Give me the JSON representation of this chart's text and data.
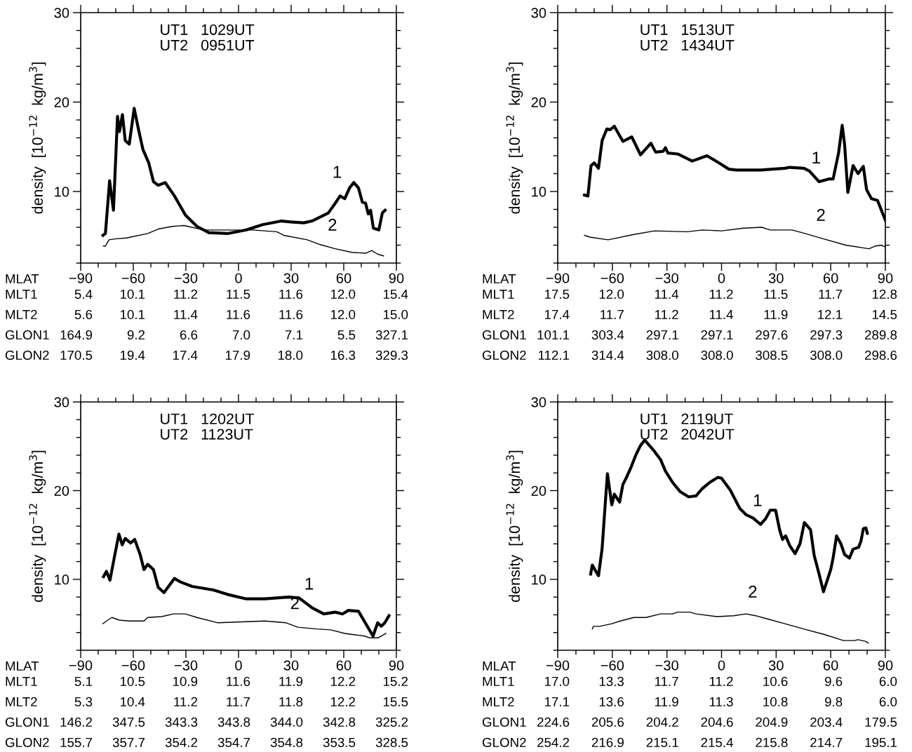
{
  "chart_data": [
    {
      "type": "line",
      "ylabel": "density  [10$^{−12}$  kg/m$^{3}$]",
      "xlabel": "MLAT",
      "annotations": [
        "UT1   1029UT",
        "UT2   0951UT",
        "MLT1",
        "5.4",
        "10.1",
        "11.2",
        "11.5",
        "11.6",
        "12.0",
        "15.4",
        "MLT2",
        "5.6",
        "10.1",
        "11.4",
        "11.6",
        "11.6",
        "12.0",
        "15.0",
        "GLON1",
        "164.9",
        "9.2",
        "6.6",
        "7.0",
        "7.1",
        "5.5",
        "327.1",
        "GLON2",
        "170.5",
        "19.4",
        "17.4",
        "17.9",
        "18.0",
        "16.3",
        "329.3",
        {
          "text": "1",
          "x": 57.9,
          "y": 9.5
        },
        {
          "text": "2",
          "x": 55.2,
          "y": 3.6
        }
      ],
      "xlim": [
        -90,
        90
      ],
      "ylim": [
        2,
        30
      ],
      "xticks": [
        -90,
        {
          "value": -80,
          "label": null
        },
        {
          "value": -70,
          "label": null
        },
        -60,
        {
          "value": -50,
          "label": null
        },
        {
          "value": -40,
          "label": null
        },
        -30,
        {
          "value": -20,
          "label": null
        },
        {
          "value": -10,
          "label": null
        },
        0,
        {
          "value": 10,
          "label": null
        },
        {
          "value": 20,
          "label": null
        },
        30,
        {
          "value": 40,
          "label": null
        },
        {
          "value": 50,
          "label": null
        },
        60,
        {
          "value": 70,
          "label": null
        },
        {
          "value": 80,
          "label": null
        },
        90
      ],
      "yticks": [
        {
          "value": 2,
          "label": null
        },
        {
          "value": 4,
          "label": null
        },
        {
          "value": 6,
          "label": null
        },
        {
          "value": 8,
          "label": null
        },
        10,
        {
          "value": 12,
          "label": null
        },
        {
          "value": 14,
          "label": null
        },
        {
          "value": 16,
          "label": null
        },
        {
          "value": 18,
          "label": null
        },
        20,
        {
          "value": 22,
          "label": null
        },
        {
          "value": 24,
          "label": null
        },
        {
          "value": 26,
          "label": null
        },
        {
          "value": 28,
          "label": null
        },
        30
      ],
      "series": [
        {
          "color": "#000000",
          "x": [
            -77.3,
            -75.9,
            -73.5,
            -71.3,
            -69.0,
            -67.9,
            -66.2,
            -64.6,
            -62.3,
            -59.5,
            -57.2,
            -54.5,
            -51.2,
            -48.5,
            -45.8,
            -41.8,
            -36.5,
            -30.4,
            -23.7,
            -17.0,
            -6.3,
            4.4,
            13.7,
            24.5,
            29.8,
            37.2,
            41.9,
            51.2,
            55.2,
            57.9,
            60.6,
            63.3,
            65.7,
            68.4,
            70.6,
            72.4,
            74.0,
            75.3,
            76.9,
            80.0,
            82.0,
            83.6
          ],
          "values": [
            5.1,
            5.3,
            11.2,
            7.9,
            18.4,
            16.7,
            18.6,
            15.7,
            15.3,
            19.3,
            17.1,
            14.7,
            13.2,
            11.1,
            10.7,
            11.0,
            9.5,
            7.4,
            6.1,
            5.4,
            5.3,
            5.7,
            6.3,
            6.7,
            6.6,
            6.5,
            6.7,
            7.6,
            8.7,
            9.5,
            9.2,
            10.4,
            11.0,
            10.4,
            8.8,
            8.7,
            7.5,
            7.9,
            5.9,
            5.7,
            7.6,
            7.9
          ]
        },
        {
          "color": "#000000",
          "x": [
            -77.0,
            -75.9,
            -73.9,
            -70.6,
            -63.9,
            -51.8,
            -45.8,
            -37.8,
            -31.1,
            -19.7,
            -9.0,
            8.4,
            21.8,
            25.8,
            39.2,
            45.9,
            55.2,
            64.6,
            72.7,
            76.0,
            79.3,
            82.7
          ],
          "values": [
            3.9,
            3.9,
            4.6,
            4.7,
            4.8,
            5.3,
            5.8,
            6.1,
            6.2,
            5.7,
            5.7,
            5.7,
            5.5,
            5.1,
            4.6,
            4.1,
            3.6,
            3.2,
            3.1,
            3.4,
            3.0,
            2.8
          ]
        }
      ]
    },
    {
      "type": "line",
      "ylabel": "density  [10$^{−12}$  kg/m$^{3}$]",
      "xlabel": "MLAT",
      "annotations": [
        "UT1   1513UT",
        "UT2   1434UT",
        "MLT1",
        "17.5",
        "12.0",
        "11.4",
        "11.2",
        "11.5",
        "11.7",
        "12.8",
        "MLT2",
        "17.4",
        "11.7",
        "11.2",
        "11.4",
        "11.9",
        "12.1",
        "14.5",
        "GLON1",
        "101.1",
        "303.4",
        "297.1",
        "297.1",
        "297.6",
        "297.3",
        "289.8",
        "GLON2",
        "112.1",
        "314.4",
        "308.0",
        "308.0",
        "308.5",
        "308.0",
        "298.6",
        {
          "text": "1",
          "x": 53.6,
          "y": 11.1
        },
        {
          "text": "2",
          "x": 56.2,
          "y": 4.7
        }
      ],
      "xlim": [
        -90,
        90
      ],
      "ylim": [
        2,
        30
      ],
      "xticks": [
        -90,
        {
          "value": -80,
          "label": null
        },
        {
          "value": -70,
          "label": null
        },
        -60,
        {
          "value": -50,
          "label": null
        },
        {
          "value": -40,
          "label": null
        },
        -30,
        {
          "value": -20,
          "label": null
        },
        {
          "value": -10,
          "label": null
        },
        0,
        {
          "value": 10,
          "label": null
        },
        {
          "value": 20,
          "label": null
        },
        30,
        {
          "value": 40,
          "label": null
        },
        {
          "value": 50,
          "label": null
        },
        60,
        {
          "value": 70,
          "label": null
        },
        {
          "value": 80,
          "label": null
        },
        90
      ],
      "yticks": [
        {
          "value": 2,
          "label": null
        },
        {
          "value": 4,
          "label": null
        },
        {
          "value": 6,
          "label": null
        },
        {
          "value": 8,
          "label": null
        },
        10,
        {
          "value": 12,
          "label": null
        },
        {
          "value": 14,
          "label": null
        },
        {
          "value": 16,
          "label": null
        },
        {
          "value": 18,
          "label": null
        },
        20,
        {
          "value": 22,
          "label": null
        },
        {
          "value": 24,
          "label": null
        },
        {
          "value": 26,
          "label": null
        },
        {
          "value": 28,
          "label": null
        },
        30
      ],
      "series": [
        {
          "color": "#000000",
          "x": [
            -75.3,
            -73.4,
            -71.7,
            -69.9,
            -67.6,
            -65.6,
            -63.0,
            -61.3,
            -58.9,
            -54.2,
            -49.3,
            -44.5,
            -38.8,
            -36.2,
            -32.1,
            -30.8,
            -29.5,
            -24.1,
            -16.1,
            -8.0,
            -1.4,
            4.0,
            8.0,
            21.4,
            34.8,
            37.5,
            45.3,
            48.2,
            53.6,
            58.9,
            61.3,
            64.3,
            66.3,
            67.6,
            69.4,
            72.3,
            75.0,
            77.9,
            79.7,
            82.4,
            85.7,
            90.0
          ],
          "values": [
            9.6,
            9.5,
            12.9,
            13.2,
            12.6,
            15.7,
            17.0,
            16.9,
            17.3,
            15.6,
            16.1,
            14.1,
            15.4,
            14.4,
            14.5,
            14.9,
            14.3,
            14.2,
            13.4,
            14.0,
            13.2,
            12.5,
            12.4,
            12.4,
            12.6,
            12.7,
            12.6,
            12.3,
            11.1,
            11.4,
            11.4,
            14.3,
            17.4,
            15.3,
            9.9,
            12.9,
            12.0,
            12.8,
            10.2,
            9.2,
            9.0,
            6.8
          ]
        },
        {
          "color": "#000000",
          "x": [
            -75.3,
            -72.3,
            -62.3,
            -48.2,
            -36.8,
            -18.8,
            -10.7,
            0.0,
            12.0,
            22.1,
            26.8,
            38.8,
            44.2,
            56.2,
            68.3,
            81.0,
            84.4,
            87.7,
            90.0
          ],
          "values": [
            5.1,
            4.9,
            4.6,
            5.2,
            5.6,
            5.5,
            5.7,
            5.6,
            5.9,
            6.0,
            5.7,
            5.7,
            5.4,
            4.7,
            4.0,
            3.6,
            3.9,
            4.0,
            3.8
          ]
        }
      ]
    },
    {
      "type": "line",
      "ylabel": "density  [10$^{−12}$  kg/m$^{3}$]",
      "xlabel": "MLAT",
      "annotations": [
        "UT1   1202UT",
        "UT2   1123UT",
        "MLT1",
        "5.1",
        "10.5",
        "10.9",
        "11.6",
        "11.9",
        "12.2",
        "15.2",
        "MLT2",
        "5.3",
        "10.4",
        "11.2",
        "11.7",
        "11.8",
        "12.2",
        "15.5",
        "GLON1",
        "146.2",
        "347.5",
        "343.3",
        "343.8",
        "344.0",
        "342.8",
        "325.2",
        "GLON2",
        "155.7",
        "357.7",
        "354.2",
        "354.7",
        "354.8",
        "353.5",
        "328.5",
        {
          "text": "1",
          "x": 41.9,
          "y": 6.8
        },
        {
          "text": "2",
          "x": 33.8,
          "y": 4.6
        }
      ],
      "xlim": [
        -90,
        90
      ],
      "ylim": [
        2,
        30
      ],
      "xticks": [
        -90,
        {
          "value": -80,
          "label": null
        },
        {
          "value": -70,
          "label": null
        },
        -60,
        {
          "value": -50,
          "label": null
        },
        {
          "value": -40,
          "label": null
        },
        -30,
        {
          "value": -20,
          "label": null
        },
        {
          "value": -10,
          "label": null
        },
        0,
        {
          "value": 10,
          "label": null
        },
        {
          "value": 20,
          "label": null
        },
        30,
        {
          "value": 40,
          "label": null
        },
        {
          "value": 50,
          "label": null
        },
        60,
        {
          "value": 70,
          "label": null
        },
        {
          "value": 80,
          "label": null
        },
        90
      ],
      "yticks": [
        {
          "value": 2,
          "label": null
        },
        {
          "value": 4,
          "label": null
        },
        {
          "value": 6,
          "label": null
        },
        {
          "value": 8,
          "label": null
        },
        10,
        {
          "value": 12,
          "label": null
        },
        {
          "value": 14,
          "label": null
        },
        {
          "value": 16,
          "label": null
        },
        {
          "value": 18,
          "label": null
        },
        20,
        {
          "value": 22,
          "label": null
        },
        {
          "value": 24,
          "label": null
        },
        {
          "value": 26,
          "label": null
        },
        {
          "value": 28,
          "label": null
        },
        30
      ],
      "series": [
        {
          "color": "#000000",
          "x": [
            -77.0,
            -75.3,
            -73.3,
            -70.9,
            -68.2,
            -66.3,
            -64.6,
            -61.5,
            -59.2,
            -56.1,
            -53.9,
            -51.8,
            -48.5,
            -45.8,
            -42.5,
            -36.5,
            -33.1,
            -26.4,
            -14.4,
            -6.3,
            4.4,
            15.1,
            28.5,
            34.5,
            41.9,
            48.6,
            55.2,
            59.3,
            62.6,
            68.4,
            76.7,
            79.3,
            81.4,
            83.4,
            85.8
          ],
          "values": [
            10.3,
            10.9,
            9.9,
            12.4,
            15.1,
            13.9,
            14.6,
            14.1,
            14.5,
            12.8,
            11.1,
            11.7,
            11.1,
            9.1,
            8.5,
            10.1,
            9.7,
            9.2,
            8.8,
            8.3,
            7.8,
            7.8,
            8.0,
            7.9,
            6.8,
            6.1,
            6.3,
            6.1,
            6.5,
            6.4,
            3.6,
            5.1,
            4.7,
            5.1,
            5.9
          ]
        },
        {
          "color": "#000000",
          "x": [
            -77.3,
            -74.6,
            -72.2,
            -67.9,
            -62.6,
            -53.9,
            -51.8,
            -43.8,
            -37.1,
            -30.4,
            -23.7,
            -11.7,
            1.7,
            15.1,
            27.1,
            33.8,
            44.5,
            52.6,
            60.6,
            72.0,
            74.7,
            79.6,
            84.0
          ],
          "values": [
            5.0,
            5.4,
            5.7,
            5.4,
            5.3,
            5.3,
            5.7,
            5.8,
            6.1,
            6.1,
            5.7,
            5.1,
            5.2,
            5.3,
            5.1,
            4.6,
            4.4,
            4.3,
            3.9,
            3.6,
            3.4,
            3.4,
            3.9
          ]
        }
      ]
    },
    {
      "type": "line",
      "ylabel": "density  [10$^{−12}$  kg/m$^{3}$]",
      "xlabel": "MLAT",
      "annotations": [
        "UT1   2119UT",
        "UT2   2042UT",
        "MLT1",
        "17.0",
        "13.3",
        "11.7",
        "11.2",
        "10.6",
        "9.6",
        "6.0",
        "MLT2",
        "17.1",
        "13.6",
        "11.9",
        "11.3",
        "10.8",
        "9.8",
        "6.0",
        "GLON1",
        "224.6",
        "205.6",
        "204.2",
        "204.6",
        "204.9",
        "203.4",
        "179.5",
        "GLON2",
        "254.2",
        "216.9",
        "215.1",
        "215.4",
        "215.8",
        "214.7",
        "195.1",
        {
          "text": "1",
          "x": 21.4,
          "y": 16.2
        },
        {
          "text": "2",
          "x": 18.7,
          "y": 5.9
        }
      ],
      "xlim": [
        -90,
        90
      ],
      "ylim": [
        2,
        30
      ],
      "xticks": [
        -90,
        {
          "value": -80,
          "label": null
        },
        {
          "value": -70,
          "label": null
        },
        -60,
        {
          "value": -50,
          "label": null
        },
        {
          "value": -40,
          "label": null
        },
        -30,
        {
          "value": -20,
          "label": null
        },
        {
          "value": -10,
          "label": null
        },
        0,
        {
          "value": 10,
          "label": null
        },
        {
          "value": 20,
          "label": null
        },
        30,
        {
          "value": 40,
          "label": null
        },
        {
          "value": 50,
          "label": null
        },
        60,
        {
          "value": 70,
          "label": null
        },
        {
          "value": 80,
          "label": null
        },
        90
      ],
      "yticks": [
        {
          "value": 2,
          "label": null
        },
        {
          "value": 4,
          "label": null
        },
        {
          "value": 6,
          "label": null
        },
        {
          "value": 8,
          "label": null
        },
        10,
        {
          "value": 12,
          "label": null
        },
        {
          "value": 14,
          "label": null
        },
        {
          "value": 16,
          "label": null
        },
        {
          "value": 18,
          "label": null
        },
        20,
        {
          "value": 22,
          "label": null
        },
        {
          "value": 24,
          "label": null
        },
        {
          "value": 26,
          "label": null
        },
        {
          "value": 28,
          "label": null
        },
        30
      ],
      "series": [
        {
          "color": "#000000",
          "x": [
            -71.9,
            -71.0,
            -69.6,
            -67.6,
            -65.6,
            -64.0,
            -62.7,
            -60.3,
            -58.9,
            -56.0,
            -54.2,
            -52.2,
            -49.6,
            -46.9,
            -44.5,
            -42.2,
            -37.5,
            -33.5,
            -30.8,
            -26.8,
            -22.8,
            -18.1,
            -14.1,
            -10.7,
            -6.7,
            -2.0,
            0.0,
            4.7,
            10.0,
            13.4,
            17.4,
            21.4,
            24.1,
            26.8,
            29.7,
            31.9,
            33.5,
            35.2,
            37.5,
            40.4,
            43.1,
            45.5,
            48.9,
            50.9,
            53.6,
            56.0,
            60.0,
            61.3,
            63.2,
            65.6,
            67.6,
            70.3,
            72.3,
            75.3,
            76.6,
            77.9,
            79.3,
            80.1
          ],
          "values": [
            10.6,
            11.6,
            11.1,
            10.4,
            13.5,
            18.2,
            21.9,
            18.4,
            19.6,
            18.7,
            20.7,
            21.5,
            22.7,
            24.1,
            25.1,
            25.7,
            24.6,
            23.5,
            22.2,
            20.9,
            19.9,
            19.3,
            19.4,
            20.2,
            20.9,
            21.5,
            21.4,
            20.1,
            18.0,
            17.3,
            16.9,
            16.2,
            16.8,
            17.8,
            17.8,
            15.6,
            14.5,
            14.9,
            13.8,
            12.9,
            14.0,
            16.4,
            15.6,
            12.7,
            10.6,
            8.6,
            11.1,
            12.4,
            14.9,
            14.0,
            12.8,
            12.4,
            13.4,
            13.6,
            14.3,
            15.7,
            15.8,
            15.2
          ]
        },
        {
          "color": "#000000",
          "x": [
            -71.0,
            -70.3,
            -67.0,
            -60.3,
            -55.6,
            -48.2,
            -41.5,
            -33.5,
            -26.8,
            -24.1,
            -17.4,
            -14.1,
            -2.7,
            6.7,
            13.4,
            18.7,
            24.1,
            34.8,
            46.9,
            56.2,
            67.0,
            73.0,
            75.0,
            79.3,
            80.6
          ],
          "values": [
            4.4,
            4.7,
            4.7,
            5.0,
            5.3,
            5.7,
            5.7,
            6.1,
            6.1,
            6.3,
            6.3,
            6.1,
            5.8,
            5.9,
            6.1,
            5.9,
            5.6,
            5.0,
            4.3,
            3.8,
            3.1,
            3.1,
            3.2,
            3.0,
            2.8
          ]
        }
      ]
    }
  ]
}
